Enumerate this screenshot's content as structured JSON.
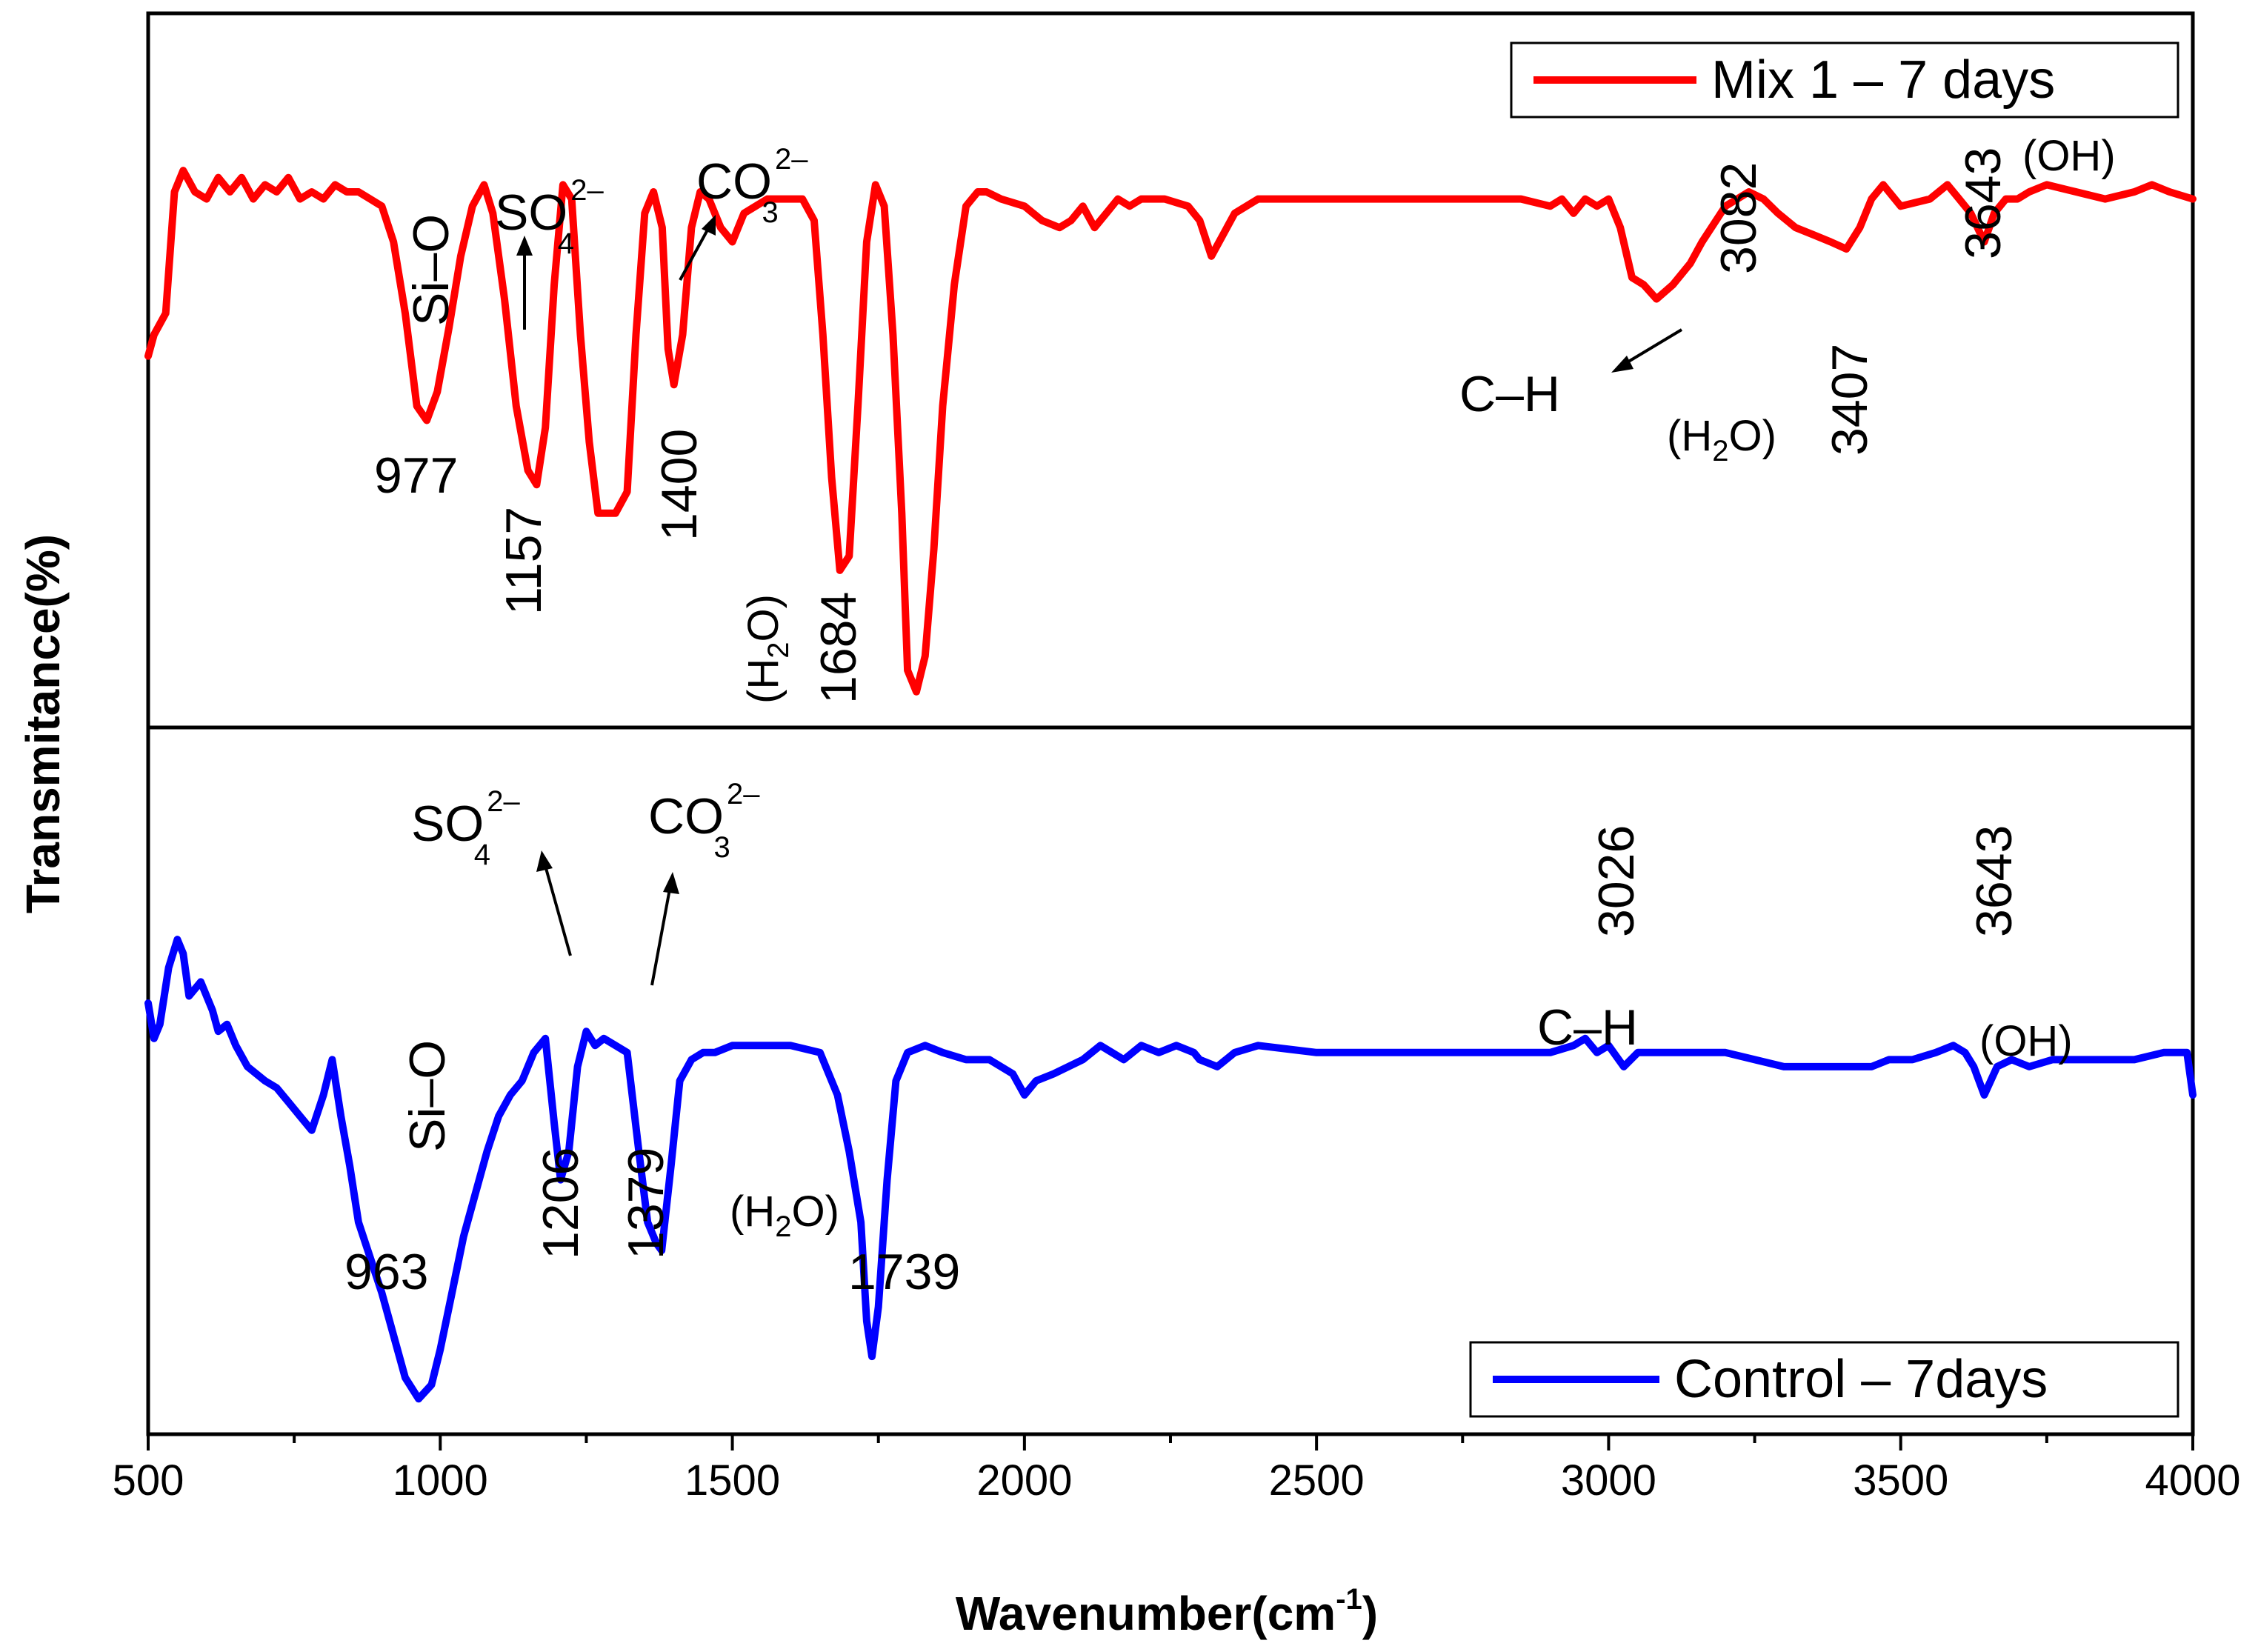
{
  "chart_data": {
    "type": "line",
    "title": "",
    "xlabel": "Wavenumber(cm",
    "xlabel_sup": "-1",
    "xlabel_close": ")",
    "ylabel": "Transmitance(%)",
    "xlim": [
      500,
      4000
    ],
    "ylim": [
      0,
      1
    ],
    "xticks": [
      "500",
      "1000",
      "1500",
      "2000",
      "2500",
      "3000",
      "3500",
      "4000"
    ],
    "grid": false,
    "series": [
      {
        "name": "Mix 1 – 7 days",
        "color": "#ff0000",
        "panel": "top",
        "x": [
          500,
          510,
          530,
          545,
          560,
          580,
          600,
          620,
          640,
          660,
          680,
          700,
          720,
          740,
          760,
          780,
          800,
          820,
          840,
          860,
          880,
          900,
          920,
          940,
          960,
          977,
          995,
          1015,
          1035,
          1055,
          1075,
          1090,
          1110,
          1130,
          1150,
          1165,
          1180,
          1195,
          1210,
          1225,
          1240,
          1255,
          1270,
          1300,
          1320,
          1335,
          1350,
          1365,
          1380,
          1390,
          1400,
          1415,
          1430,
          1445,
          1460,
          1480,
          1500,
          1520,
          1560,
          1620,
          1640,
          1655,
          1670,
          1684,
          1700,
          1715,
          1730,
          1745,
          1760,
          1775,
          1790,
          1800,
          1815,
          1830,
          1845,
          1860,
          1880,
          1900,
          1920,
          1935,
          1960,
          2000,
          2030,
          2060,
          2080,
          2100,
          2120,
          2140,
          2160,
          2180,
          2200,
          2240,
          2280,
          2300,
          2320,
          2360,
          2400,
          2500,
          2600,
          2700,
          2800,
          2850,
          2900,
          2920,
          2940,
          2960,
          2980,
          3000,
          3020,
          3040,
          3060,
          3082,
          3110,
          3140,
          3160,
          3200,
          3240,
          3265,
          3290,
          3320,
          3350,
          3380,
          3407,
          3430,
          3450,
          3470,
          3500,
          3550,
          3580,
          3600,
          3620,
          3643,
          3660,
          3680,
          3700,
          3720,
          3750,
          3800,
          3850,
          3900,
          3930,
          3960,
          4000
        ],
        "values": [
          0.52,
          0.55,
          0.58,
          0.75,
          0.78,
          0.75,
          0.74,
          0.77,
          0.75,
          0.77,
          0.74,
          0.76,
          0.75,
          0.77,
          0.74,
          0.75,
          0.74,
          0.76,
          0.75,
          0.75,
          0.74,
          0.73,
          0.68,
          0.58,
          0.45,
          0.43,
          0.47,
          0.56,
          0.66,
          0.73,
          0.76,
          0.72,
          0.6,
          0.45,
          0.36,
          0.34,
          0.42,
          0.62,
          0.76,
          0.74,
          0.55,
          0.4,
          0.3,
          0.3,
          0.33,
          0.55,
          0.72,
          0.75,
          0.7,
          0.53,
          0.48,
          0.55,
          0.7,
          0.75,
          0.74,
          0.7,
          0.68,
          0.72,
          0.74,
          0.74,
          0.71,
          0.55,
          0.35,
          0.22,
          0.24,
          0.45,
          0.68,
          0.76,
          0.73,
          0.55,
          0.3,
          0.08,
          0.05,
          0.1,
          0.25,
          0.45,
          0.62,
          0.73,
          0.75,
          0.75,
          0.74,
          0.73,
          0.71,
          0.7,
          0.71,
          0.73,
          0.7,
          0.72,
          0.74,
          0.73,
          0.74,
          0.74,
          0.73,
          0.71,
          0.66,
          0.72,
          0.74,
          0.74,
          0.74,
          0.74,
          0.74,
          0.74,
          0.73,
          0.74,
          0.72,
          0.74,
          0.73,
          0.74,
          0.7,
          0.63,
          0.62,
          0.6,
          0.62,
          0.65,
          0.68,
          0.73,
          0.75,
          0.74,
          0.72,
          0.7,
          0.69,
          0.68,
          0.67,
          0.7,
          0.74,
          0.76,
          0.73,
          0.74,
          0.76,
          0.74,
          0.72,
          0.68,
          0.72,
          0.74,
          0.74,
          0.75,
          0.76,
          0.75,
          0.74,
          0.75,
          0.76,
          0.75,
          0.74
        ]
      },
      {
        "name": "Control – 7days",
        "color": "#0000ff",
        "panel": "bottom",
        "x": [
          500,
          510,
          520,
          535,
          550,
          560,
          570,
          590,
          610,
          620,
          635,
          650,
          670,
          700,
          720,
          740,
          760,
          780,
          800,
          815,
          830,
          845,
          860,
          880,
          900,
          920,
          940,
          963,
          985,
          1000,
          1020,
          1040,
          1060,
          1080,
          1100,
          1120,
          1140,
          1160,
          1180,
          1195,
          1206,
          1220,
          1235,
          1250,
          1265,
          1280,
          1300,
          1320,
          1340,
          1355,
          1370,
          1379,
          1395,
          1410,
          1430,
          1450,
          1470,
          1500,
          1550,
          1600,
          1650,
          1680,
          1700,
          1720,
          1730,
          1739,
          1750,
          1765,
          1780,
          1800,
          1830,
          1860,
          1900,
          1940,
          1980,
          2000,
          2020,
          2050,
          2100,
          2130,
          2150,
          2170,
          2200,
          2230,
          2260,
          2290,
          2300,
          2330,
          2360,
          2400,
          2500,
          2600,
          2700,
          2800,
          2900,
          2940,
          2960,
          2980,
          3000,
          3026,
          3050,
          3100,
          3150,
          3200,
          3250,
          3300,
          3350,
          3400,
          3450,
          3480,
          3520,
          3560,
          3590,
          3610,
          3625,
          3643,
          3665,
          3690,
          3720,
          3760,
          3800,
          3850,
          3900,
          3950,
          3990,
          4000
        ],
        "values": [
          0.61,
          0.56,
          0.58,
          0.66,
          0.7,
          0.68,
          0.62,
          0.64,
          0.6,
          0.57,
          0.58,
          0.55,
          0.52,
          0.5,
          0.49,
          0.47,
          0.45,
          0.43,
          0.48,
          0.53,
          0.45,
          0.38,
          0.3,
          0.25,
          0.2,
          0.14,
          0.08,
          0.05,
          0.07,
          0.12,
          0.2,
          0.28,
          0.34,
          0.4,
          0.45,
          0.48,
          0.5,
          0.54,
          0.56,
          0.44,
          0.36,
          0.4,
          0.52,
          0.57,
          0.55,
          0.56,
          0.55,
          0.54,
          0.4,
          0.3,
          0.27,
          0.26,
          0.38,
          0.5,
          0.53,
          0.54,
          0.54,
          0.55,
          0.55,
          0.55,
          0.54,
          0.48,
          0.4,
          0.3,
          0.16,
          0.11,
          0.18,
          0.36,
          0.5,
          0.54,
          0.55,
          0.54,
          0.53,
          0.53,
          0.51,
          0.48,
          0.5,
          0.51,
          0.53,
          0.55,
          0.54,
          0.53,
          0.55,
          0.54,
          0.55,
          0.54,
          0.53,
          0.52,
          0.54,
          0.55,
          0.54,
          0.54,
          0.54,
          0.54,
          0.54,
          0.55,
          0.56,
          0.54,
          0.55,
          0.52,
          0.54,
          0.54,
          0.54,
          0.54,
          0.53,
          0.52,
          0.52,
          0.52,
          0.52,
          0.53,
          0.53,
          0.54,
          0.55,
          0.54,
          0.52,
          0.48,
          0.52,
          0.53,
          0.52,
          0.53,
          0.53,
          0.53,
          0.53,
          0.54,
          0.54,
          0.48
        ]
      }
    ],
    "annotations_top": {
      "si_o": "Si–O",
      "so4_main": "SO",
      "so4_sub": "4",
      "so4_sup": "2–",
      "co3_main": "CO",
      "co3_sub": "3",
      "co3_sup": "2–",
      "p977": "977",
      "p1157": "1157",
      "p1400": "1400",
      "h2o_left_a": "(H",
      "h2o_left_sub": "2",
      "h2o_left_b": "O)",
      "p1684": "1684",
      "p3082": "3082",
      "ch": "C–H",
      "h2o_right_a": "(H",
      "h2o_right_sub": "2",
      "h2o_right_b": "O)",
      "p3407": "3407",
      "p3643": "3643",
      "oh": "(OH)"
    },
    "annotations_bottom": {
      "so4_main": "SO",
      "so4_sub": "4",
      "so4_sup": "2–",
      "co3_main": "CO",
      "co3_sub": "3",
      "co3_sup": "2–",
      "si_o": "Si–O",
      "p963": "963",
      "p1206": "1206",
      "p1379": "1379",
      "h2o_a": "(H",
      "h2o_sub": "2",
      "h2o_b": "O)",
      "p1739": "1739",
      "p3026": "3026",
      "ch": "C–H",
      "p3643": "3643",
      "oh": "(OH)"
    },
    "legend_position": "top-right / bottom-right"
  }
}
